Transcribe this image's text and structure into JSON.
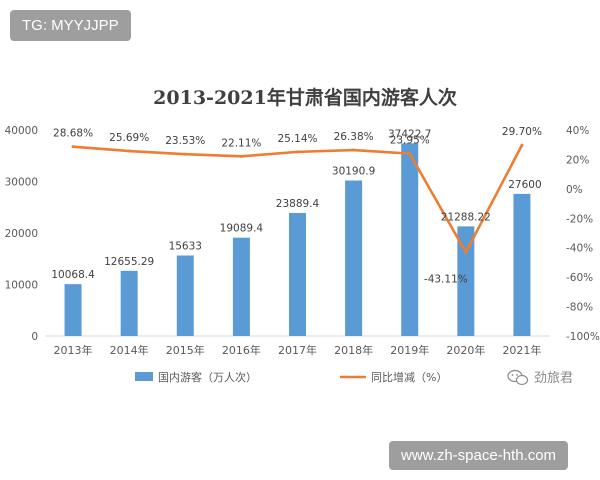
{
  "overlay": {
    "tg_label": "TG: MYYJJPP",
    "site_url": "www.zh-space-hth.com",
    "watermark": "劲旅君"
  },
  "chart_data": {
    "type": "bar",
    "title": "2013-2021年甘肃省国内游客人次",
    "categories": [
      "2013年",
      "2014年",
      "2015年",
      "2016年",
      "2017年",
      "2018年",
      "2019年",
      "2020年",
      "2021年"
    ],
    "series": [
      {
        "name": "国内游客（万人次）",
        "type": "bar",
        "axis": "left",
        "values": [
          10068.4,
          12655.29,
          15633,
          19089.4,
          23889.4,
          30190.9,
          37422.7,
          21288.22,
          27600
        ],
        "labels": [
          "10068.4",
          "12655.29",
          "15633",
          "19089.4",
          "23889.4",
          "30190.9",
          "37422.7",
          "21288.22",
          "27600"
        ]
      },
      {
        "name": "同比增减（%）",
        "type": "line",
        "axis": "right",
        "values": [
          28.68,
          25.69,
          23.53,
          22.11,
          25.14,
          26.38,
          23.95,
          -43.11,
          29.7
        ],
        "labels": [
          "28.68%",
          "25.69%",
          "23.53%",
          "22.11%",
          "25.14%",
          "26.38%",
          "23.95%",
          "-43.11%",
          "29.70%"
        ]
      }
    ],
    "y_left": {
      "ylim": [
        0,
        40000
      ],
      "ticks": [
        "0",
        "10000",
        "20000",
        "30000",
        "40000"
      ]
    },
    "y_right": {
      "ylim": [
        -100,
        40
      ],
      "ticks": [
        "-100%",
        "-80%",
        "-60%",
        "-40%",
        "-20%",
        "0%",
        "20%",
        "40%"
      ]
    },
    "legend_position": "bottom",
    "grid": false,
    "colors": {
      "bar": "#5b9bd5",
      "line": "#ed7d31",
      "axis_text": "#595959",
      "title": "#404040"
    }
  }
}
